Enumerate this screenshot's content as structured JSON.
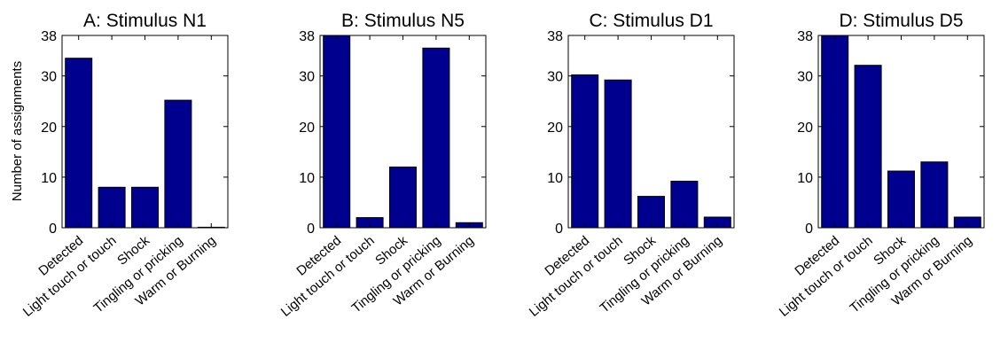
{
  "colors": {
    "bar": "#00008F",
    "bar_edge": "#000000"
  },
  "ylabel": "Number of assignments",
  "chart_data": [
    {
      "type": "bar",
      "title": "A: Stimulus N1",
      "categories": [
        "Detected",
        "Light touch or touch",
        "Shock",
        "Tingling or pricking",
        "Warm or Burning"
      ],
      "values": [
        33.5,
        8,
        8,
        25.2,
        0.1
      ],
      "ylim": [
        0,
        38
      ],
      "yticks": [
        0,
        10,
        20,
        30,
        38
      ],
      "ytick_labels": [
        "0",
        "10",
        "20",
        "30",
        "38"
      ]
    },
    {
      "type": "bar",
      "title": "B: Stimulus N5",
      "categories": [
        "Detected",
        "Light touch or touch",
        "Shock",
        "Tingling or pricking",
        "Warm or Burning"
      ],
      "values": [
        38,
        2,
        12,
        35.5,
        1
      ],
      "ylim": [
        0,
        38
      ],
      "yticks": [
        0,
        10,
        20,
        30,
        38
      ],
      "ytick_labels": [
        "0",
        "10",
        "20",
        "30",
        "38"
      ]
    },
    {
      "type": "bar",
      "title": "C: Stimulus D1",
      "categories": [
        "Detected",
        "Light touch or touch",
        "Shock",
        "Tingling or pricking",
        "Warm or Burning"
      ],
      "values": [
        30.2,
        29.2,
        6.2,
        9.2,
        2.1
      ],
      "ylim": [
        0,
        38
      ],
      "yticks": [
        0,
        10,
        20,
        30,
        38
      ],
      "ytick_labels": [
        "0",
        "10",
        "20",
        "30",
        "38"
      ]
    },
    {
      "type": "bar",
      "title": "D: Stimulus D5",
      "categories": [
        "Detected",
        "Light touch or touch",
        "Shock",
        "Tingling or pricking",
        "Warm or Burning"
      ],
      "values": [
        38,
        32.1,
        11.2,
        13,
        2.1
      ],
      "ylim": [
        0,
        38
      ],
      "yticks": [
        0,
        10,
        20,
        30,
        38
      ],
      "ytick_labels": [
        "0",
        "10",
        "20",
        "30",
        "38"
      ]
    }
  ]
}
